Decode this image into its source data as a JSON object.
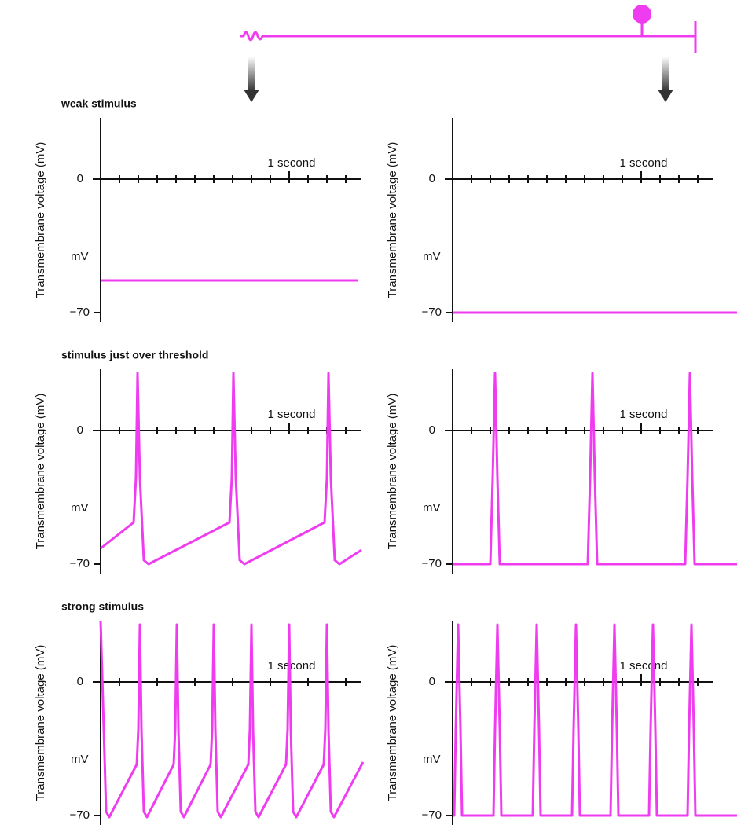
{
  "panels": [
    {
      "title": "weak stimulus",
      "plots": [
        {
          "y_label": "Transmembrane voltage (mV)",
          "zero": "0",
          "unit": "mV",
          "low": "−70",
          "time": "1 second"
        },
        {
          "y_label": "Transmembrane voltage (mV)",
          "zero": "0",
          "unit": "mV",
          "low": "−70",
          "time": "1 second"
        }
      ]
    },
    {
      "title": "stimulus just over threshold",
      "plots": [
        {
          "y_label": "Transmembrane voltage (mV)",
          "zero": "0",
          "unit": "mV",
          "low": "−70",
          "time": "1 second"
        },
        {
          "y_label": "Transmembrane voltage (mV)",
          "zero": "0",
          "unit": "mV",
          "low": "−70",
          "time": "1 second"
        }
      ]
    },
    {
      "title": "strong stimulus",
      "plots": [
        {
          "y_label": "Transmembrane voltage (mV)",
          "zero": "0",
          "unit": "mV",
          "low": "−70",
          "time": "1 second"
        },
        {
          "y_label": "Transmembrane voltage (mV)",
          "zero": "0",
          "unit": "mV",
          "low": "−70",
          "time": "1 second"
        }
      ]
    }
  ]
}
